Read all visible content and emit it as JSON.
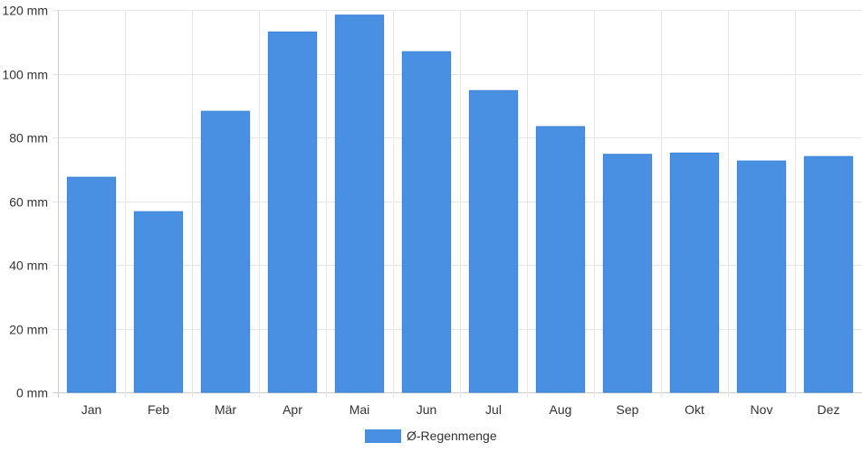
{
  "chart_data": {
    "type": "bar",
    "categories": [
      "Jan",
      "Feb",
      "Mär",
      "Apr",
      "Mai",
      "Jun",
      "Jul",
      "Aug",
      "Sep",
      "Okt",
      "Nov",
      "Dez"
    ],
    "series": [
      {
        "name": "Ø-Regenmenge",
        "values": [
          67.5,
          56.7,
          88.2,
          113.1,
          118.4,
          106.9,
          94.7,
          83.4,
          74.7,
          75.1,
          72.6,
          74.0
        ],
        "color": "#4a90e2"
      }
    ],
    "y_ticks": [
      0,
      20,
      40,
      60,
      80,
      100,
      120
    ],
    "y_unit": "mm",
    "ylim": [
      0,
      120
    ],
    "grid": true,
    "legend_position": "bottom-center"
  }
}
